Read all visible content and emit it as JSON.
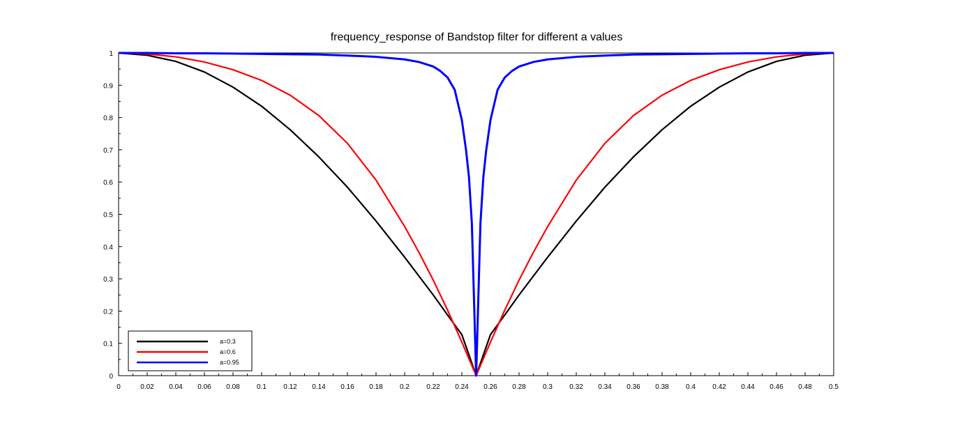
{
  "chart_data": {
    "type": "line",
    "title": "frequency_response of Bandstop filter for different a values",
    "xlabel": "",
    "ylabel": "",
    "xlim": [
      0,
      0.5
    ],
    "ylim": [
      0,
      1
    ],
    "x_ticks": [
      0,
      0.02,
      0.04,
      0.06,
      0.08,
      0.1,
      0.12,
      0.14,
      0.16,
      0.18,
      0.2,
      0.22,
      0.24,
      0.26,
      0.28,
      0.3,
      0.32,
      0.34,
      0.36,
      0.38,
      0.4,
      0.42,
      0.44,
      0.46,
      0.48,
      0.5
    ],
    "x_tick_labels": [
      "0",
      "0.02",
      "0.04",
      "0.06",
      "0.08",
      "0.1",
      "0.12",
      "0.14",
      "0.16",
      "0.18",
      "0.2",
      "0.22",
      "0.24",
      "0.26",
      "0.28",
      "0.3",
      "0.32",
      "0.34",
      "0.36",
      "0.38",
      "0.4",
      "0.42",
      "0.44",
      "0.46",
      "0.48",
      "0.5"
    ],
    "y_ticks": [
      0,
      0.1,
      0.2,
      0.3,
      0.4,
      0.5,
      0.6,
      0.7,
      0.8,
      0.9,
      1
    ],
    "y_tick_labels": [
      "0",
      "0.1",
      "0.2",
      "0.3",
      "0.4",
      "0.5",
      "0.6",
      "0.7",
      "0.8",
      "0.9",
      "1"
    ],
    "grid": false,
    "legend_position": "bottom-left",
    "series": [
      {
        "name": "a=0.3",
        "color": "#000000",
        "x": [
          0,
          0.02,
          0.04,
          0.06,
          0.08,
          0.1,
          0.12,
          0.14,
          0.16,
          0.18,
          0.2,
          0.22,
          0.23,
          0.24,
          0.245,
          0.25,
          0.255,
          0.26,
          0.27,
          0.28,
          0.3,
          0.32,
          0.34,
          0.36,
          0.38,
          0.4,
          0.42,
          0.44,
          0.46,
          0.48,
          0.5
        ],
        "y": [
          1,
          0.993,
          0.974,
          0.941,
          0.894,
          0.835,
          0.762,
          0.678,
          0.584,
          0.479,
          0.367,
          0.25,
          0.188,
          0.127,
          0.064,
          0,
          0.064,
          0.127,
          0.188,
          0.25,
          0.367,
          0.479,
          0.584,
          0.678,
          0.762,
          0.835,
          0.894,
          0.941,
          0.974,
          0.993,
          1
        ]
      },
      {
        "name": "a=0.6",
        "color": "#ff0000",
        "x": [
          0,
          0.02,
          0.04,
          0.06,
          0.08,
          0.1,
          0.12,
          0.14,
          0.16,
          0.18,
          0.2,
          0.21,
          0.22,
          0.23,
          0.24,
          0.245,
          0.25,
          0.255,
          0.26,
          0.27,
          0.28,
          0.29,
          0.3,
          0.32,
          0.34,
          0.36,
          0.38,
          0.4,
          0.42,
          0.44,
          0.46,
          0.48,
          0.5
        ],
        "y": [
          1,
          0.997,
          0.988,
          0.972,
          0.948,
          0.915,
          0.869,
          0.806,
          0.72,
          0.606,
          0.462,
          0.382,
          0.296,
          0.203,
          0.104,
          0.052,
          0,
          0.052,
          0.104,
          0.203,
          0.296,
          0.382,
          0.462,
          0.606,
          0.72,
          0.806,
          0.869,
          0.915,
          0.948,
          0.972,
          0.988,
          0.997,
          1
        ]
      },
      {
        "name": "a=0.95",
        "color": "#0000ff",
        "x": [
          0,
          0.02,
          0.04,
          0.06,
          0.08,
          0.1,
          0.12,
          0.14,
          0.16,
          0.18,
          0.2,
          0.21,
          0.22,
          0.225,
          0.23,
          0.235,
          0.24,
          0.243,
          0.245,
          0.247,
          0.249,
          0.25,
          0.251,
          0.253,
          0.255,
          0.257,
          0.26,
          0.265,
          0.27,
          0.275,
          0.28,
          0.29,
          0.3,
          0.32,
          0.34,
          0.36,
          0.38,
          0.4,
          0.42,
          0.44,
          0.46,
          0.48,
          0.5
        ],
        "y": [
          1,
          1,
          0.999,
          0.999,
          0.998,
          0.997,
          0.996,
          0.995,
          0.992,
          0.988,
          0.98,
          0.972,
          0.958,
          0.944,
          0.924,
          0.886,
          0.792,
          0.697,
          0.614,
          0.472,
          0.157,
          0,
          0.157,
          0.472,
          0.614,
          0.697,
          0.792,
          0.886,
          0.924,
          0.944,
          0.958,
          0.972,
          0.98,
          0.988,
          0.992,
          0.995,
          0.996,
          0.997,
          0.998,
          0.999,
          0.999,
          1,
          1
        ]
      }
    ]
  }
}
